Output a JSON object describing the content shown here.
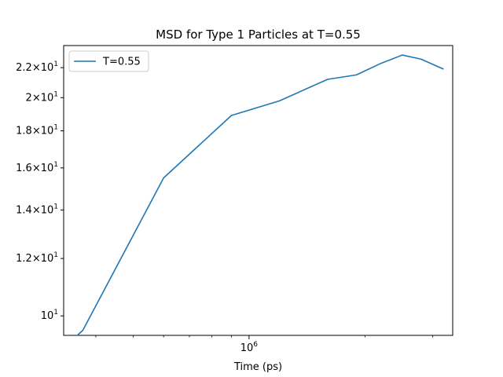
{
  "chart_data": {
    "type": "line",
    "title": "MSD for Type 1 Particles at T=0.55",
    "xlabel": "Time (ps)",
    "ylabel": "",
    "x_scale": "log",
    "y_scale": "log",
    "xlim": [
      330000,
      3380000
    ],
    "ylim": [
      9.4,
      23.6
    ],
    "grid": false,
    "legend_position": "top-left",
    "x_ticks": [
      {
        "value": 1000000,
        "base": "10",
        "exp": "6"
      }
    ],
    "y_ticks": [
      {
        "value": 10,
        "mantissa": "",
        "base": "10",
        "exp": "1"
      },
      {
        "value": 12,
        "mantissa": "1.2",
        "base": "10",
        "exp": "1"
      },
      {
        "value": 14,
        "mantissa": "1.4",
        "base": "10",
        "exp": "1"
      },
      {
        "value": 16,
        "mantissa": "1.6",
        "base": "10",
        "exp": "1"
      },
      {
        "value": 18,
        "mantissa": "1.8",
        "base": "10",
        "exp": "1"
      },
      {
        "value": 20,
        "mantissa": "2",
        "base": "10",
        "exp": "1"
      },
      {
        "value": 22,
        "mantissa": "2.2",
        "base": "10",
        "exp": "1"
      }
    ],
    "x_minor_ticks": [
      400000,
      500000,
      600000,
      700000,
      800000,
      900000,
      2000000,
      3000000
    ],
    "series": [
      {
        "name": "T=0.55",
        "color": "#1f77b4",
        "x": [
          350000,
          370000,
          600000,
          900000,
          1200000,
          1600000,
          1900000,
          2200000,
          2500000,
          2800000,
          3200000
        ],
        "y": [
          9.3,
          9.55,
          15.5,
          18.9,
          19.8,
          21.2,
          21.5,
          22.3,
          22.9,
          22.6,
          21.9
        ]
      }
    ]
  }
}
